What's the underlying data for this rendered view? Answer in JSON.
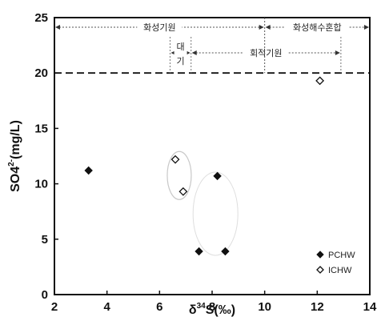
{
  "chart_data": {
    "type": "scatter",
    "xlabel": "δ34S(‰)",
    "ylabel": "SO42-(mg/L)",
    "xlim": [
      2,
      14
    ],
    "ylim": [
      0,
      25
    ],
    "xticks": [
      2,
      4,
      6,
      8,
      10,
      12,
      14
    ],
    "yticks": [
      0,
      5,
      10,
      15,
      20,
      25
    ],
    "grid": false,
    "legend_position": "bottom-right",
    "threshold_line": {
      "y": 20,
      "style": "dashed"
    },
    "series": [
      {
        "name": "PCHW",
        "marker": "filled-diamond",
        "points": [
          {
            "x": 3.3,
            "y": 11.2
          },
          {
            "x": 8.2,
            "y": 10.7
          },
          {
            "x": 7.5,
            "y": 3.9
          },
          {
            "x": 8.5,
            "y": 3.9
          }
        ]
      },
      {
        "name": "ICHW",
        "marker": "open-diamond",
        "points": [
          {
            "x": 6.6,
            "y": 12.2
          },
          {
            "x": 6.9,
            "y": 9.3
          },
          {
            "x": 12.1,
            "y": 19.3
          }
        ]
      }
    ],
    "regions": [
      {
        "label": "화성기원",
        "x_start": 2,
        "x_end": 10,
        "level": "top"
      },
      {
        "label": "화성해수혼합",
        "x_start": 10,
        "x_end": 14,
        "level": "top"
      },
      {
        "label": "대",
        "label2": "기",
        "x_start": 6.4,
        "x_end": 7.2,
        "level": "bottom"
      },
      {
        "label": "회적기원",
        "x_start": 7.2,
        "x_end": 12.9,
        "level": "bottom"
      }
    ]
  }
}
